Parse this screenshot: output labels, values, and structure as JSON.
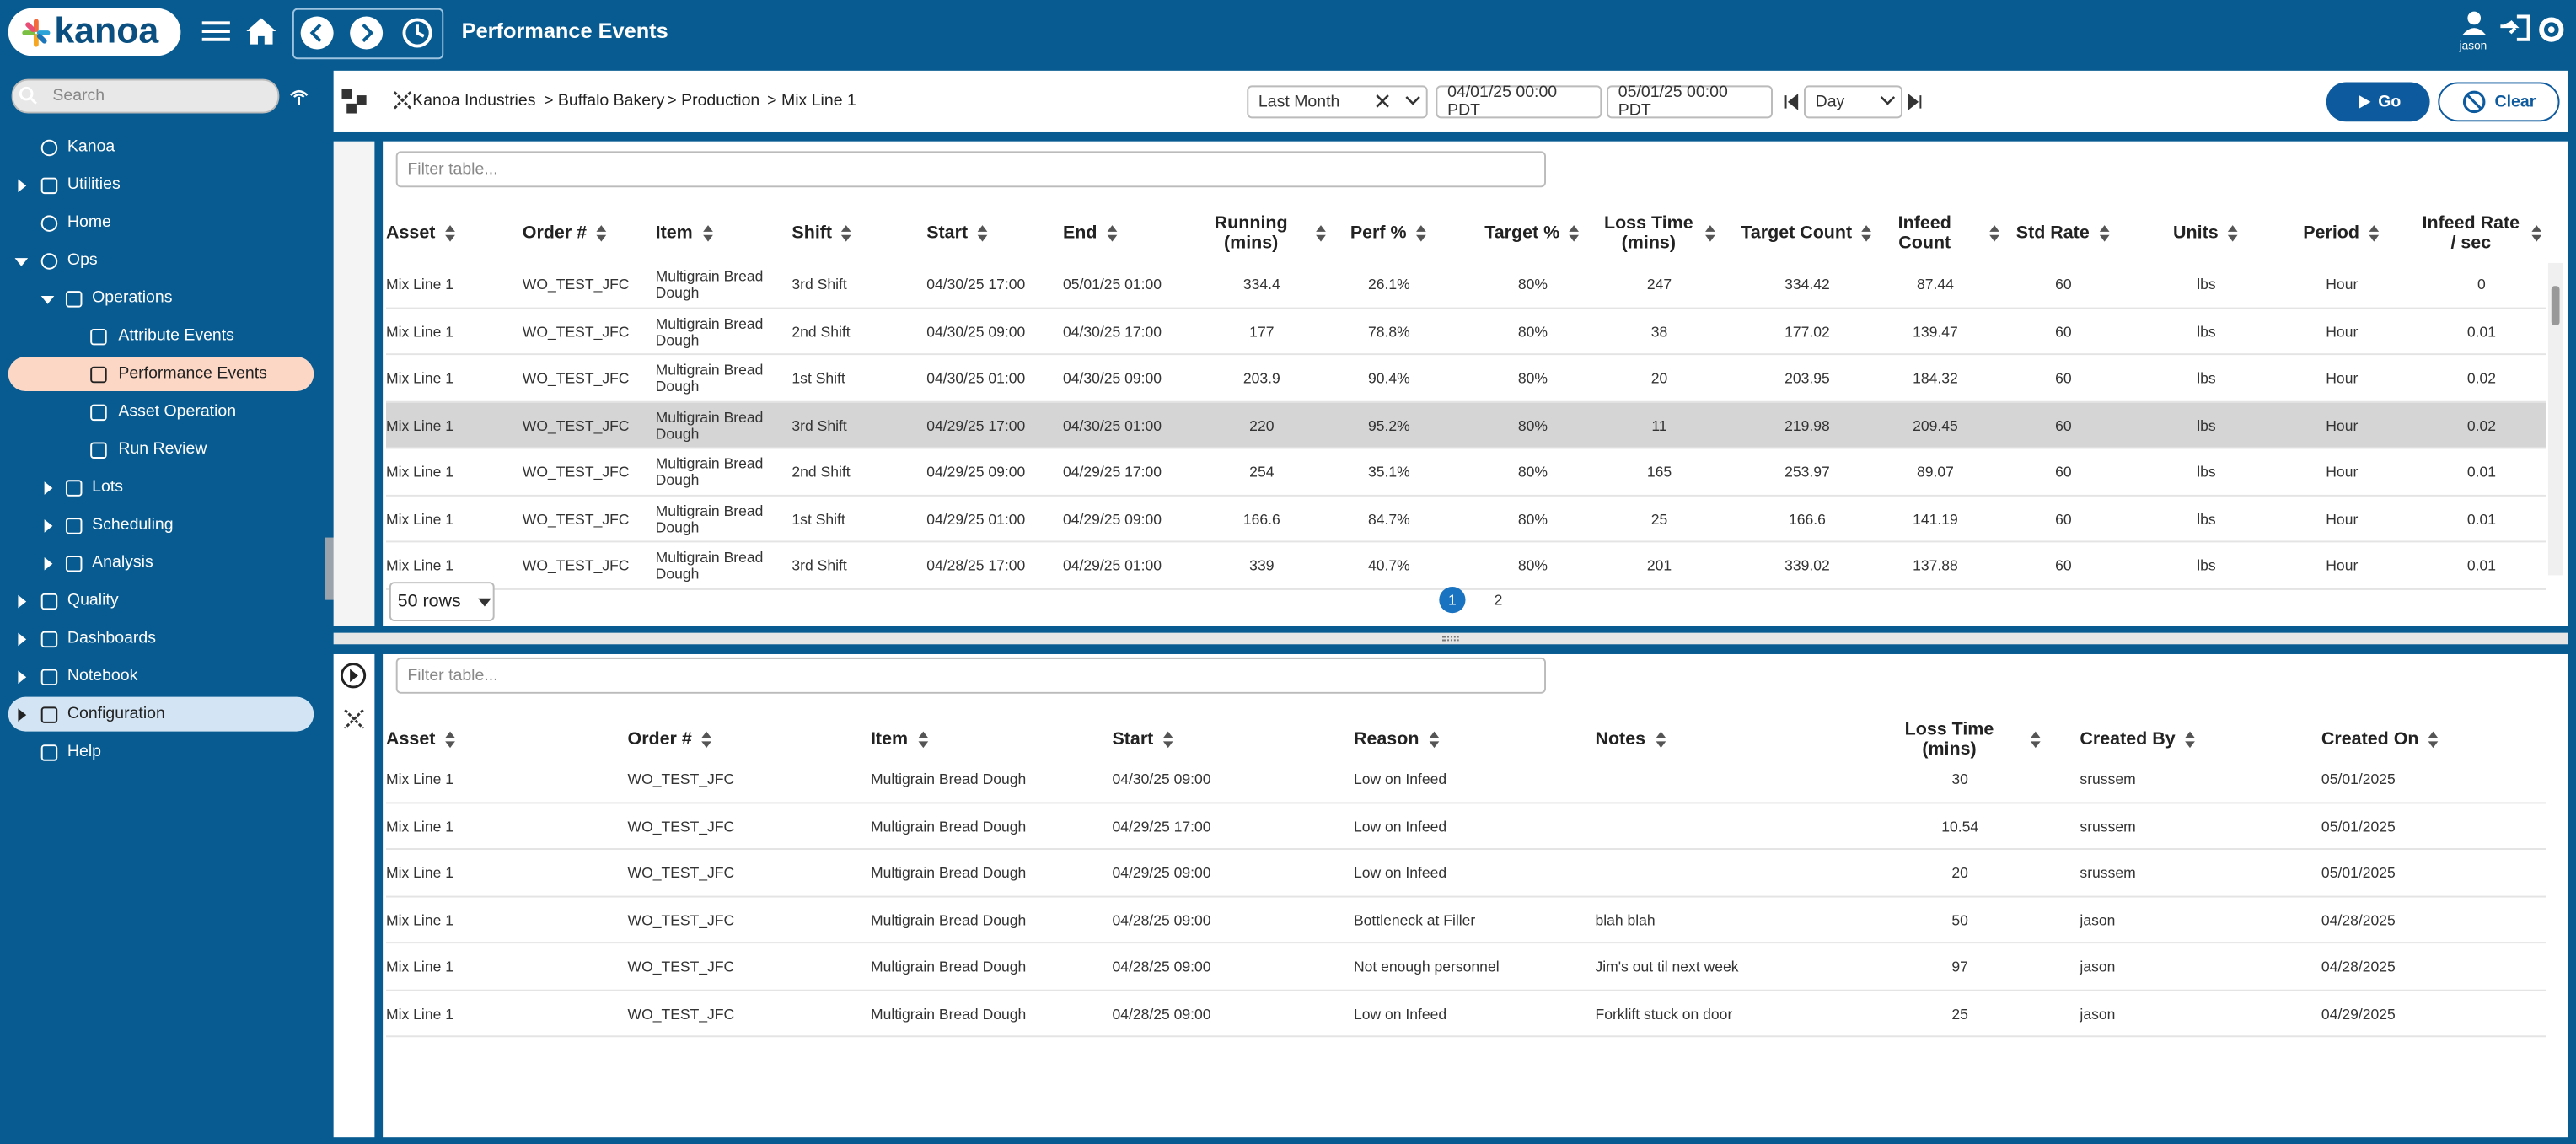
{
  "header": {
    "logo": "kanoa",
    "title": "Performance Events",
    "user": "jason"
  },
  "sidebar": {
    "search_placeholder": "Search",
    "items": [
      "Kanoa",
      "Utilities",
      "Home",
      "Ops",
      "Operations",
      "Attribute Events",
      "Performance Events",
      "Asset Operation",
      "Run Review",
      "Lots",
      "Scheduling",
      "Analysis",
      "Quality",
      "Dashboards",
      "Notebook",
      "Configuration",
      "Help"
    ]
  },
  "breadcrumb": [
    "Kanoa Industries",
    "> Buffalo Bakery",
    "> Production",
    "> Mix Line 1"
  ],
  "toolbar": {
    "range": "Last Month",
    "start": "04/01/25 00:00 PDT",
    "end": "05/01/25 00:00 PDT",
    "interval": "Day",
    "go": "Go",
    "clear": "Clear"
  },
  "table1": {
    "filter_placeholder": "Filter table...",
    "columns": [
      "Asset",
      "Order #",
      "Item",
      "Shift",
      "Start",
      "End",
      "Running (mins)",
      "Perf %",
      "Target %",
      "Loss Time (mins)",
      "Target Count",
      "Infeed Count",
      "Std Rate",
      "Units",
      "Period",
      "Infeed Rate / sec"
    ],
    "rows": [
      [
        "Mix Line 1",
        "WO_TEST_JFC",
        "Multigrain Bread Dough",
        "3rd Shift",
        "04/30/25 17:00",
        "05/01/25 01:00",
        "334.4",
        "26.1%",
        "80%",
        "247",
        "334.42",
        "87.44",
        "60",
        "lbs",
        "Hour",
        "0"
      ],
      [
        "Mix Line 1",
        "WO_TEST_JFC",
        "Multigrain Bread Dough",
        "2nd Shift",
        "04/30/25 09:00",
        "04/30/25 17:00",
        "177",
        "78.8%",
        "80%",
        "38",
        "177.02",
        "139.47",
        "60",
        "lbs",
        "Hour",
        "0.01"
      ],
      [
        "Mix Line 1",
        "WO_TEST_JFC",
        "Multigrain Bread Dough",
        "1st Shift",
        "04/30/25 01:00",
        "04/30/25 09:00",
        "203.9",
        "90.4%",
        "80%",
        "20",
        "203.95",
        "184.32",
        "60",
        "lbs",
        "Hour",
        "0.02"
      ],
      [
        "Mix Line 1",
        "WO_TEST_JFC",
        "Multigrain Bread Dough",
        "3rd Shift",
        "04/29/25 17:00",
        "04/30/25 01:00",
        "220",
        "95.2%",
        "80%",
        "11",
        "219.98",
        "209.45",
        "60",
        "lbs",
        "Hour",
        "0.02"
      ],
      [
        "Mix Line 1",
        "WO_TEST_JFC",
        "Multigrain Bread Dough",
        "2nd Shift",
        "04/29/25 09:00",
        "04/29/25 17:00",
        "254",
        "35.1%",
        "80%",
        "165",
        "253.97",
        "89.07",
        "60",
        "lbs",
        "Hour",
        "0.01"
      ],
      [
        "Mix Line 1",
        "WO_TEST_JFC",
        "Multigrain Bread Dough",
        "1st Shift",
        "04/29/25 01:00",
        "04/29/25 09:00",
        "166.6",
        "84.7%",
        "80%",
        "25",
        "166.6",
        "141.19",
        "60",
        "lbs",
        "Hour",
        "0.01"
      ],
      [
        "Mix Line 1",
        "WO_TEST_JFC",
        "Multigrain Bread Dough",
        "3rd Shift",
        "04/28/25 17:00",
        "04/29/25 01:00",
        "339",
        "40.7%",
        "80%",
        "201",
        "339.02",
        "137.88",
        "60",
        "lbs",
        "Hour",
        "0.01"
      ]
    ],
    "page_size": "50 rows",
    "pages": [
      "1",
      "2"
    ]
  },
  "table2": {
    "filter_placeholder": "Filter table...",
    "columns": [
      "Asset",
      "Order #",
      "Item",
      "Start",
      "Reason",
      "Notes",
      "Loss Time (mins)",
      "Created By",
      "Created On"
    ],
    "rows": [
      [
        "Mix Line 1",
        "WO_TEST_JFC",
        "Multigrain Bread Dough",
        "04/30/25 09:00",
        "Low on Infeed",
        "",
        "30",
        "srussem",
        "05/01/2025"
      ],
      [
        "Mix Line 1",
        "WO_TEST_JFC",
        "Multigrain Bread Dough",
        "04/29/25 17:00",
        "Low on Infeed",
        "",
        "10.54",
        "srussem",
        "05/01/2025"
      ],
      [
        "Mix Line 1",
        "WO_TEST_JFC",
        "Multigrain Bread Dough",
        "04/29/25 09:00",
        "Low on Infeed",
        "",
        "20",
        "srussem",
        "05/01/2025"
      ],
      [
        "Mix Line 1",
        "WO_TEST_JFC",
        "Multigrain Bread Dough",
        "04/28/25 09:00",
        "Bottleneck at Filler",
        "blah blah",
        "50",
        "jason",
        "04/28/2025"
      ],
      [
        "Mix Line 1",
        "WO_TEST_JFC",
        "Multigrain Bread Dough",
        "04/28/25 09:00",
        "Not enough personnel",
        "Jim's out til next week",
        "97",
        "jason",
        "04/28/2025"
      ],
      [
        "Mix Line 1",
        "WO_TEST_JFC",
        "Multigrain Bread Dough",
        "04/28/25 09:00",
        "Low on Infeed",
        "Forklift stuck on door",
        "25",
        "jason",
        "04/29/2025"
      ]
    ]
  }
}
